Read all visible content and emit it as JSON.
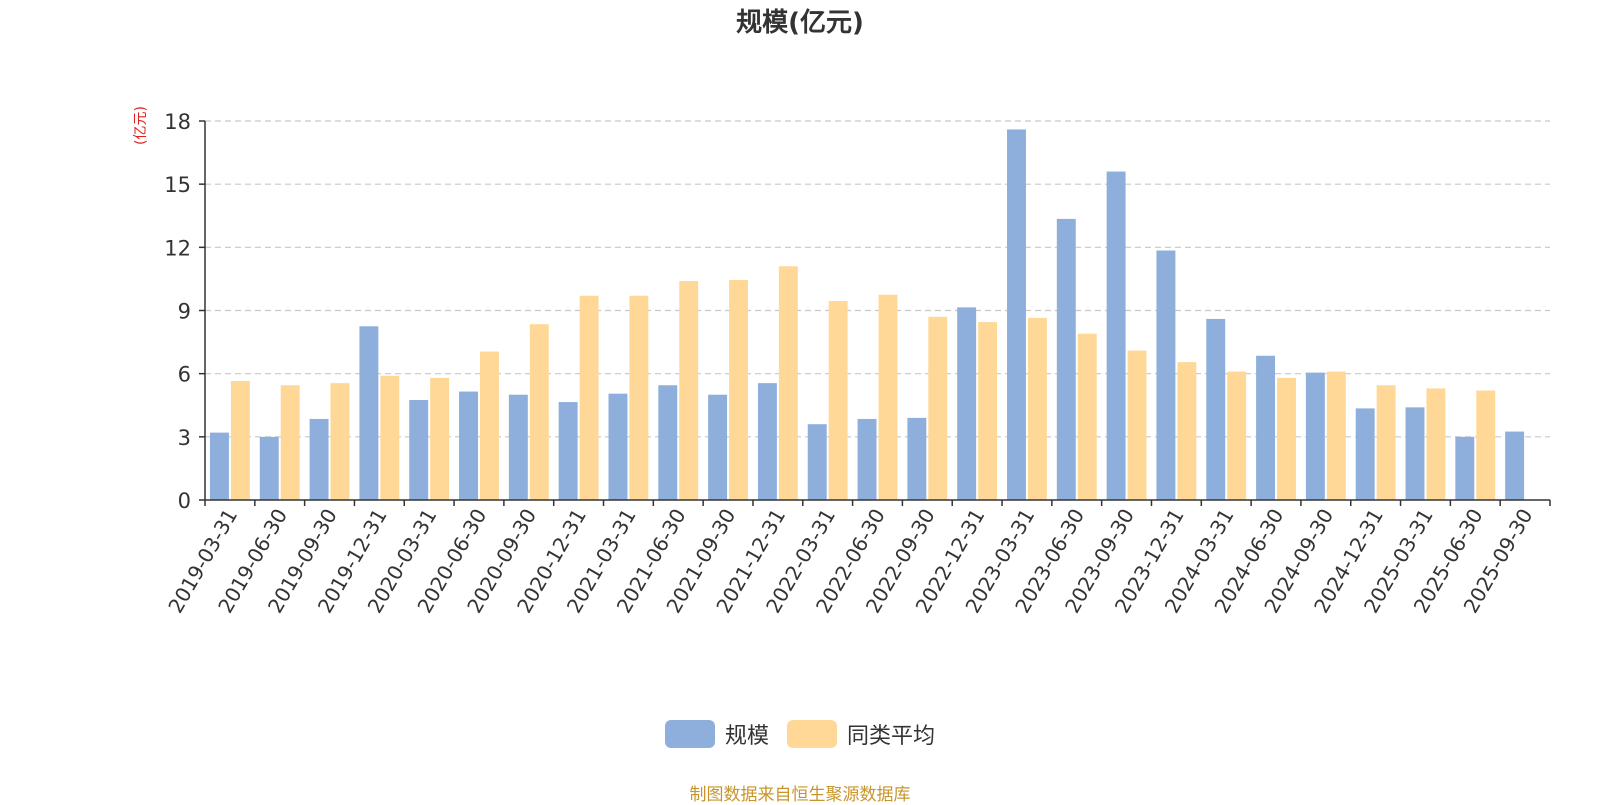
{
  "chart_data": {
    "type": "bar",
    "title": "规模(亿元)",
    "ylabel": "(亿元)",
    "ylim": [
      0,
      18
    ],
    "yticks": [
      0,
      3,
      6,
      9,
      12,
      15,
      18
    ],
    "grid": true,
    "legend_position": "bottom",
    "categories": [
      "2019-03-31",
      "2019-06-30",
      "2019-09-30",
      "2019-12-31",
      "2020-03-31",
      "2020-06-30",
      "2020-09-30",
      "2020-12-31",
      "2021-03-31",
      "2021-06-30",
      "2021-09-30",
      "2021-12-31",
      "2022-03-31",
      "2022-06-30",
      "2022-09-30",
      "2022-12-31",
      "2023-03-31",
      "2023-06-30",
      "2023-09-30",
      "2023-12-31",
      "2024-03-31",
      "2024-06-30",
      "2024-09-30",
      "2024-12-31",
      "2025-03-31",
      "2025-06-30",
      "2025-09-30"
    ],
    "series": [
      {
        "name": "规模",
        "color": "#8eaedc",
        "values": [
          3.2,
          3.0,
          3.85,
          8.25,
          4.75,
          5.15,
          5.0,
          4.65,
          5.05,
          5.45,
          5.0,
          5.55,
          3.6,
          3.85,
          3.9,
          9.15,
          17.6,
          13.35,
          15.6,
          11.85,
          8.6,
          6.85,
          6.05,
          4.35,
          4.4,
          3.0,
          3.25
        ]
      },
      {
        "name": "同类平均",
        "color": "#ffd898",
        "values": [
          5.65,
          5.45,
          5.55,
          5.9,
          5.8,
          7.05,
          8.35,
          9.7,
          9.7,
          10.4,
          10.45,
          11.1,
          9.45,
          9.75,
          8.7,
          8.45,
          8.65,
          7.9,
          7.1,
          6.55,
          6.1,
          5.8,
          6.1,
          5.45,
          5.3,
          5.2,
          null
        ]
      }
    ]
  },
  "source_text": "制图数据来自恒生聚源数据库"
}
